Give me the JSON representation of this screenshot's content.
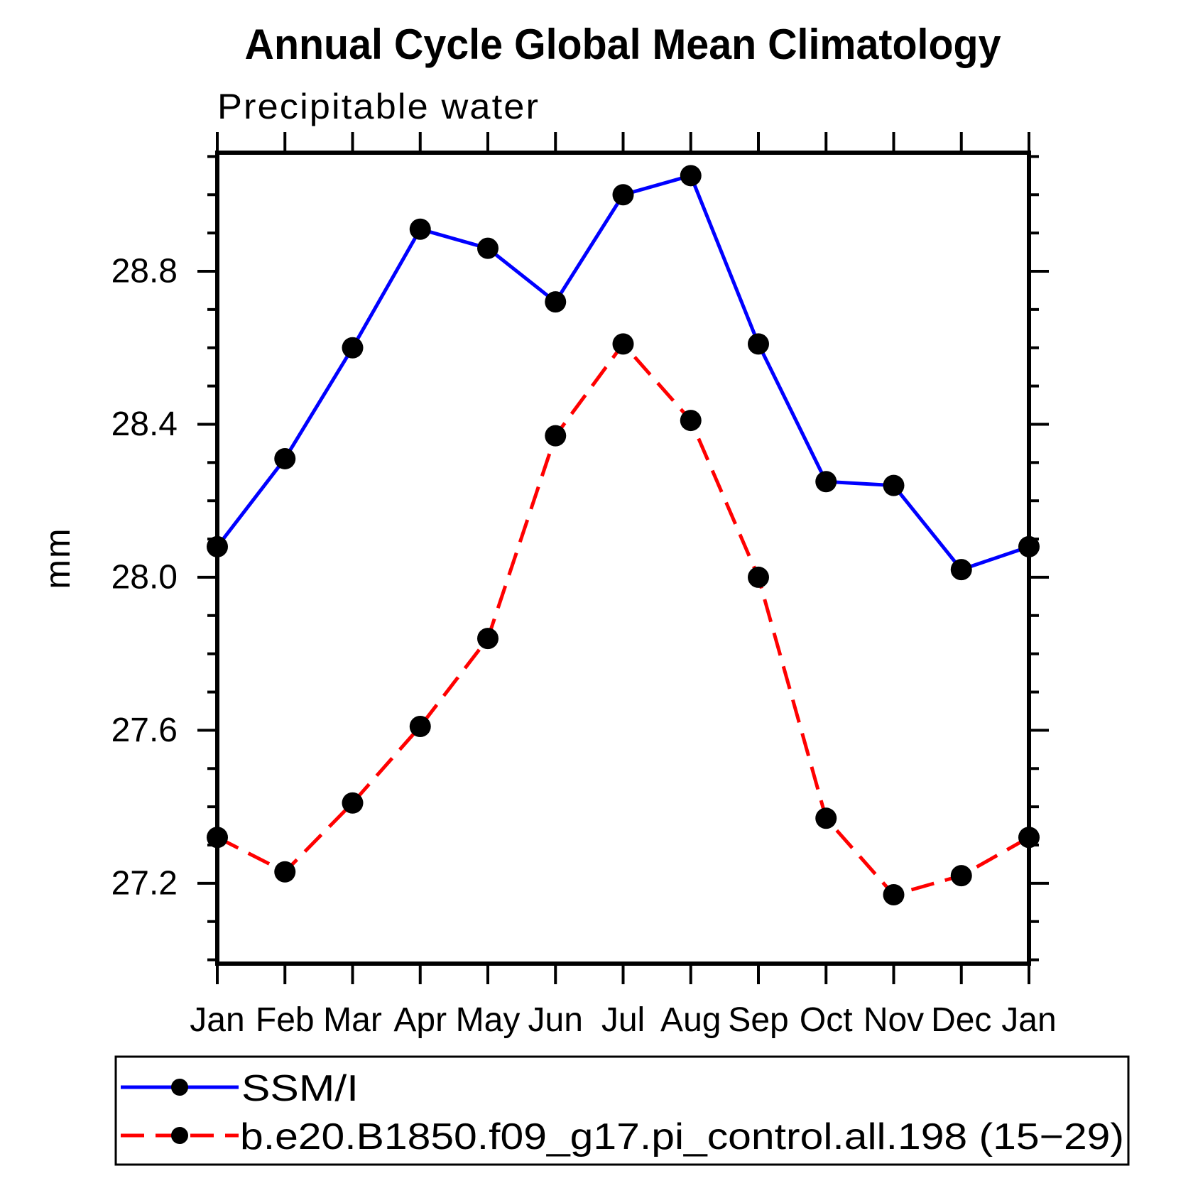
{
  "title": "Annual Cycle Global Mean Climatology",
  "subtitle": "Precipitable water",
  "y_axis_label": "mm",
  "colors": {
    "series1": "#0000ff",
    "series2": "#ff0000",
    "marker": "#000000",
    "axis": "#000000",
    "background": "#ffffff"
  },
  "chart_data": {
    "type": "line",
    "title": "Annual Cycle Global Mean Climatology",
    "subtitle": "Precipitable water",
    "xlabel": "",
    "ylabel": "mm",
    "categories": [
      "Jan",
      "Feb",
      "Mar",
      "Apr",
      "May",
      "Jun",
      "Jul",
      "Aug",
      "Sep",
      "Oct",
      "Nov",
      "Dec",
      "Jan"
    ],
    "series": [
      {
        "name": "SSM/I",
        "color": "#0000ff",
        "line_style": "solid",
        "marker": "filled-circle",
        "marker_color": "#000000",
        "values": [
          28.08,
          28.31,
          28.6,
          28.91,
          28.86,
          28.72,
          29.0,
          29.05,
          28.61,
          28.25,
          28.24,
          28.02,
          28.08
        ]
      },
      {
        "name": "b.e20.B1850.f09_g17.pi_control.all.198 (15−29)",
        "color": "#ff0000",
        "line_style": "dashed",
        "marker": "filled-circle",
        "marker_color": "#000000",
        "values": [
          27.32,
          27.23,
          27.41,
          27.61,
          27.84,
          28.37,
          28.61,
          28.41,
          28.0,
          27.37,
          27.17,
          27.22,
          27.32
        ]
      }
    ],
    "y_major_ticks": [
      28.8,
      28.4,
      28.0,
      27.6,
      27.2
    ],
    "y_minor_step": 0.1,
    "y_minor_range": [
      27.0,
      29.1
    ],
    "ylim": [
      26.99,
      29.11
    ],
    "grid": false,
    "legend_position": "bottom-left-box"
  }
}
